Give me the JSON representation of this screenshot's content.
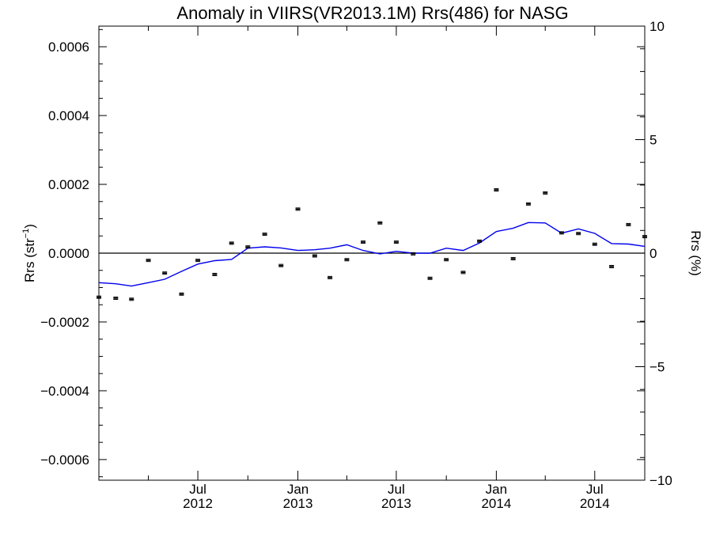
{
  "chart_data": {
    "type": "line",
    "title": "Anomaly in VIIRS(VR2013.1M) Rrs(486) for NASG",
    "ylabel_left": "Rrs (str",
    "ylabel_left_sup": "−1",
    "ylabel_left_close": ")",
    "ylabel_right": "Rrs (%)",
    "left_axis": {
      "ylim": [
        -0.00066,
        0.00066
      ],
      "ticks": [
        -0.0006,
        -0.0004,
        -0.0002,
        0.0,
        0.0002,
        0.0004,
        0.0006
      ],
      "tick_labels": [
        "−0.0006",
        "−0.0004",
        "−0.0002",
        "0.0000",
        "0.0002",
        "0.0004",
        "0.0006"
      ]
    },
    "right_axis": {
      "ylim": [
        -10,
        10
      ],
      "ticks": [
        -10,
        -5,
        0,
        5,
        10
      ],
      "tick_labels": [
        "−10",
        "−5",
        "0",
        "5",
        "10"
      ]
    },
    "x_axis": {
      "range": [
        "2012-01-01",
        "2014-10-01"
      ],
      "ticks": [
        {
          "date": "2012-07-01",
          "line1": "Jul",
          "line2": "2012"
        },
        {
          "date": "2013-01-01",
          "line1": "Jan",
          "line2": "2013"
        },
        {
          "date": "2013-07-01",
          "line1": "Jul",
          "line2": "2013"
        },
        {
          "date": "2014-01-01",
          "line1": "Jan",
          "line2": "2014"
        },
        {
          "date": "2014-07-01",
          "line1": "Jul",
          "line2": "2014"
        }
      ]
    },
    "zero_line": 0,
    "series": [
      {
        "kind": "points_with_errorbars",
        "axis": "left",
        "color": "#000000",
        "x": [
          "2012-01-01",
          "2012-02-01",
          "2012-03-01",
          "2012-04-01",
          "2012-05-01",
          "2012-06-01",
          "2012-07-01",
          "2012-08-01",
          "2012-09-01",
          "2012-10-01",
          "2012-11-01",
          "2012-12-01",
          "2013-01-01",
          "2013-02-01",
          "2013-03-01",
          "2013-04-01",
          "2013-05-01",
          "2013-06-01",
          "2013-07-01",
          "2013-08-01",
          "2013-09-01",
          "2013-10-01",
          "2013-11-01",
          "2013-12-01",
          "2014-01-01",
          "2014-02-01",
          "2014-03-01",
          "2014-04-01",
          "2014-05-01",
          "2014-06-01",
          "2014-07-01",
          "2014-08-01",
          "2014-09-01",
          "2014-10-01"
        ],
        "values": [
          -0.000128,
          -0.000131,
          -0.000134,
          -2.1e-05,
          -5.8e-05,
          -0.000119,
          -2.1e-05,
          -6.2e-05,
          2.9e-05,
          1.8e-05,
          5.5e-05,
          -3.6e-05,
          0.000128,
          -8e-06,
          -7.1e-05,
          -1.9e-05,
          3.2e-05,
          8.8e-05,
          3.2e-05,
          -2e-06,
          -7.3e-05,
          -1.9e-05,
          -5.6e-05,
          3.5e-05,
          0.000184,
          -1.6e-05,
          0.000143,
          0.000175,
          5.9e-05,
          5.7e-05,
          2.6e-05,
          -3.9e-05,
          8.3e-05,
          4.8e-05
        ]
      },
      {
        "kind": "line",
        "axis": "right",
        "color": "#0000ee",
        "x": [
          "2012-01-01",
          "2012-02-01",
          "2012-03-01",
          "2012-04-01",
          "2012-05-01",
          "2012-06-01",
          "2012-07-01",
          "2012-08-01",
          "2012-09-01",
          "2012-10-01",
          "2012-11-01",
          "2012-12-01",
          "2013-01-01",
          "2013-02-01",
          "2013-03-01",
          "2013-04-01",
          "2013-05-01",
          "2013-06-01",
          "2013-07-01",
          "2013-08-01",
          "2013-09-01",
          "2013-10-01",
          "2013-11-01",
          "2013-12-01",
          "2014-01-01",
          "2014-02-01",
          "2014-03-01",
          "2014-04-01",
          "2014-05-01",
          "2014-06-01",
          "2014-07-01",
          "2014-08-01",
          "2014-09-01",
          "2014-10-01"
        ],
        "values": [
          -1.3,
          -1.35,
          -1.45,
          -1.3,
          -1.15,
          -0.8,
          -0.48,
          -0.33,
          -0.28,
          0.22,
          0.28,
          0.23,
          0.12,
          0.15,
          0.22,
          0.37,
          0.12,
          -0.03,
          0.08,
          0.0,
          0.0,
          0.22,
          0.12,
          0.45,
          0.95,
          1.1,
          1.35,
          1.33,
          0.88,
          1.07,
          0.87,
          0.42,
          0.4,
          0.3
        ]
      }
    ]
  }
}
